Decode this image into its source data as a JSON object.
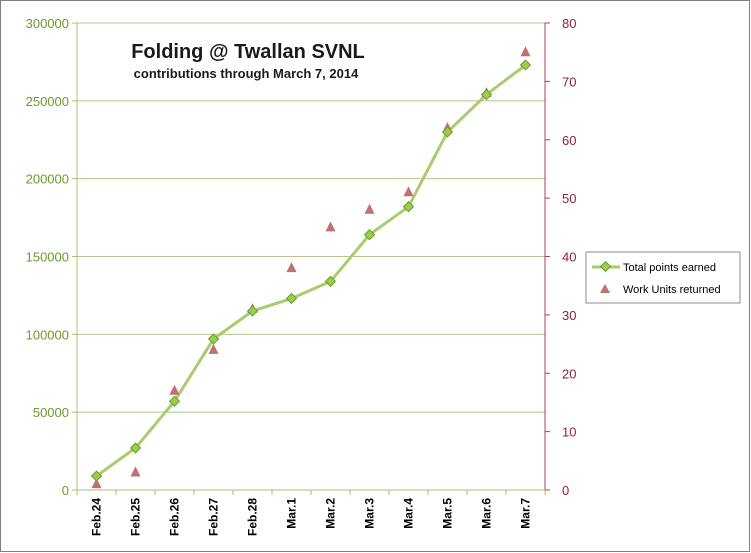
{
  "chart_data": {
    "type": "line",
    "title": "Folding @ Twallan SVNL",
    "subtitle": "contributions through March 7, 2014",
    "categories": [
      "Feb.24",
      "Feb.25",
      "Feb.26",
      "Feb.27",
      "Feb.28",
      "Mar.1",
      "Mar.2",
      "Mar.3",
      "Mar.4",
      "Mar.5",
      "Mar.6",
      "Mar.7"
    ],
    "y_left": {
      "min": 0,
      "max": 300000,
      "step": 50000,
      "ticks": [
        "0",
        "50000",
        "100000",
        "150000",
        "200000",
        "250000",
        "300000"
      ]
    },
    "y_right": {
      "min": 0,
      "max": 80,
      "step": 10,
      "ticks": [
        "0",
        "10",
        "20",
        "30",
        "40",
        "50",
        "60",
        "70",
        "80"
      ]
    },
    "grid": true,
    "legend_position": "right",
    "series": [
      {
        "name": "Total points earned",
        "type": "line",
        "axis": "left",
        "marker": "diamond",
        "color": "#a8cc6e",
        "marker_fill": "#9ccc52",
        "marker_stroke": "#6e9b2a",
        "values": [
          9000,
          27000,
          57000,
          97000,
          115000,
          123000,
          134000,
          164000,
          182000,
          230000,
          254000,
          273000
        ]
      },
      {
        "name": "Work Units returned",
        "type": "scatter",
        "axis": "right",
        "marker": "triangle",
        "color": "#c07070",
        "values": [
          1,
          3,
          17,
          24,
          31,
          38,
          45,
          48,
          51,
          62,
          68,
          75
        ]
      }
    ]
  }
}
